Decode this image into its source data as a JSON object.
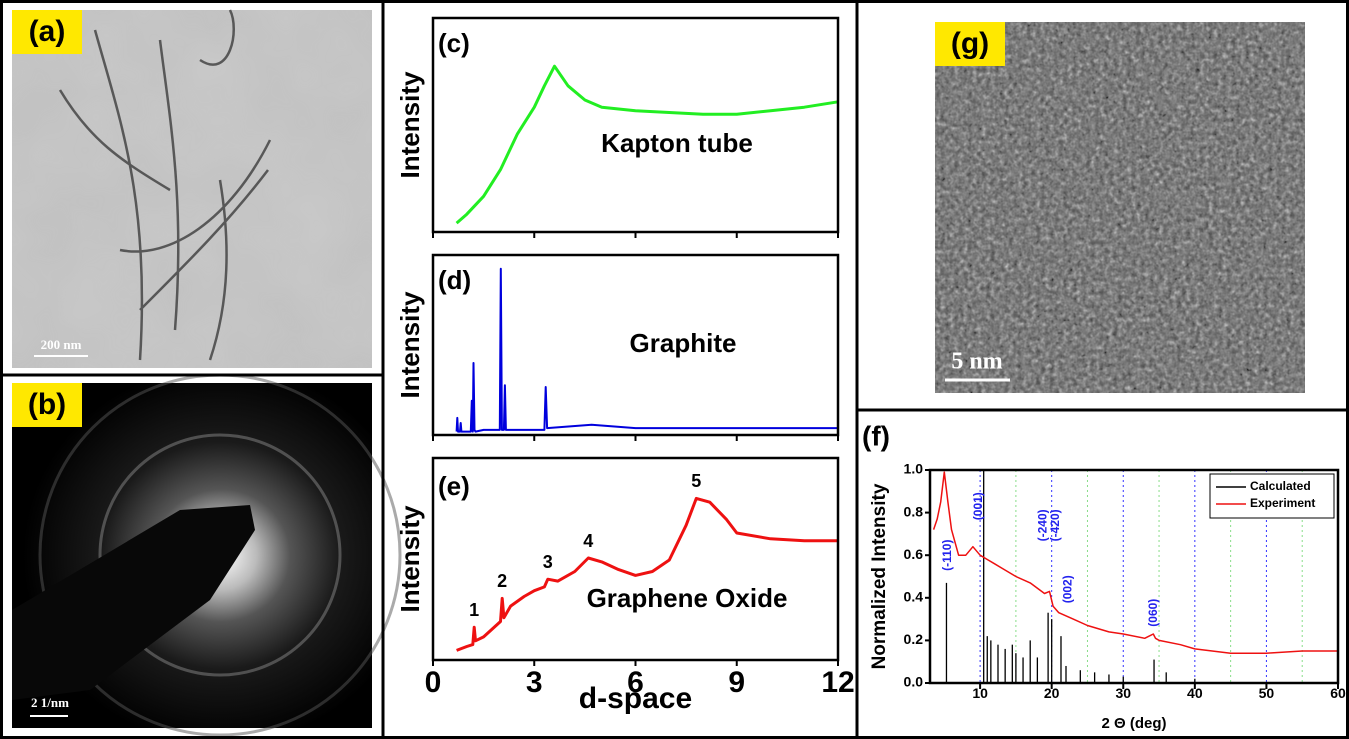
{
  "images": [
    {
      "panel": "(a)",
      "scale_bar": "200 nm"
    },
    {
      "panel": "(b)",
      "scale_bar": "2 1/nm"
    },
    {
      "panel": "(g)",
      "scale_bar": "5 nm"
    }
  ],
  "chart_data": [
    {
      "type": "line",
      "panel": "(c)",
      "ylabel": "Intensity",
      "label": "Kapton tube",
      "color": "#22ee22",
      "xlim": [
        0,
        12
      ],
      "xticks": [
        0,
        3,
        6,
        9,
        12
      ],
      "xticklabels": false,
      "ylim": [
        0,
        1.2
      ],
      "x": [
        0.7,
        1,
        1.5,
        2,
        2.5,
        3,
        3.3,
        3.6,
        4,
        4.5,
        5,
        6,
        7,
        8,
        9,
        10,
        11,
        12
      ],
      "values": [
        0.05,
        0.1,
        0.2,
        0.35,
        0.55,
        0.7,
        0.82,
        0.93,
        0.82,
        0.74,
        0.7,
        0.68,
        0.67,
        0.66,
        0.66,
        0.68,
        0.7,
        0.73
      ]
    },
    {
      "type": "line",
      "panel": "(d)",
      "ylabel": "Intensity",
      "label": "Graphite",
      "color": "#0000dd",
      "xlim": [
        0,
        12
      ],
      "xticks": [
        0,
        3,
        6,
        9,
        12
      ],
      "xticklabels": false,
      "ylim": [
        0,
        1.05
      ],
      "x": [
        0.7,
        0.72,
        0.74,
        0.8,
        0.82,
        0.84,
        1.12,
        1.15,
        1.18,
        1.2,
        1.23,
        1.26,
        1.5,
        1.98,
        2.01,
        2.04,
        2.1,
        2.13,
        2.16,
        3.3,
        3.34,
        3.38,
        4.7,
        6,
        9,
        12
      ],
      "values": [
        0.02,
        0.1,
        0.02,
        0.02,
        0.07,
        0.02,
        0.02,
        0.2,
        0.02,
        0.42,
        0.03,
        0.02,
        0.03,
        0.03,
        0.97,
        0.03,
        0.03,
        0.29,
        0.03,
        0.03,
        0.28,
        0.04,
        0.06,
        0.04,
        0.04,
        0.04
      ]
    },
    {
      "type": "line",
      "panel": "(e)",
      "ylabel": "Intensity",
      "xlabel": "d-space",
      "label": "Graphene Oxide",
      "color": "#ee1111",
      "xlim": [
        0,
        12
      ],
      "xticks": [
        0,
        3,
        6,
        9,
        12
      ],
      "xticklabels": true,
      "ylim": [
        0,
        1.05
      ],
      "x": [
        0.7,
        1.0,
        1.18,
        1.22,
        1.26,
        1.5,
        2.0,
        2.05,
        2.1,
        2.3,
        2.7,
        3.0,
        3.3,
        3.4,
        3.7,
        4.2,
        4.6,
        5.0,
        5.5,
        6.0,
        6.5,
        7.0,
        7.5,
        7.8,
        8.2,
        8.7,
        9.0,
        10,
        11,
        12
      ],
      "values": [
        0.05,
        0.07,
        0.08,
        0.17,
        0.1,
        0.12,
        0.2,
        0.32,
        0.22,
        0.28,
        0.33,
        0.36,
        0.38,
        0.42,
        0.41,
        0.46,
        0.53,
        0.51,
        0.47,
        0.44,
        0.46,
        0.52,
        0.7,
        0.84,
        0.82,
        0.73,
        0.66,
        0.63,
        0.62,
        0.62
      ],
      "annotations": [
        {
          "text": "1",
          "x": 1.22,
          "y": 0.17
        },
        {
          "text": "2",
          "x": 2.05,
          "y": 0.32
        },
        {
          "text": "3",
          "x": 3.4,
          "y": 0.42
        },
        {
          "text": "4",
          "x": 4.6,
          "y": 0.53
        },
        {
          "text": "5",
          "x": 7.8,
          "y": 0.84
        }
      ]
    },
    {
      "type": "line",
      "panel": "(f)",
      "ylabel": "Normalized Intensity",
      "xlabel": "2 Θ (deg)",
      "xlim": [
        3,
        60
      ],
      "xticks": [
        10,
        20,
        30,
        40,
        50,
        60
      ],
      "xticklabels": true,
      "xminorticks": [
        15,
        25,
        35,
        45,
        55
      ],
      "grid_color": "#3333ff",
      "minor_grid_color": "#88dd88",
      "ylim": [
        0,
        1.0
      ],
      "yticks": [
        {
          "value": 0,
          "label": "0.0"
        },
        {
          "value": 0.2,
          "label": "0.2"
        },
        {
          "value": 0.4,
          "label": "0.4"
        },
        {
          "value": 0.6,
          "label": "0.6"
        },
        {
          "value": 0.8,
          "label": "0.8"
        },
        {
          "value": 1.0,
          "label": "1.0"
        }
      ],
      "legend": "upper right",
      "series": [
        {
          "name": "Calculated",
          "color": "#000000",
          "style": "stem",
          "x": [
            5.3,
            10.5,
            11,
            11.5,
            12.5,
            13.5,
            14.5,
            15,
            16,
            17,
            18,
            19.5,
            20,
            21.3,
            22,
            24,
            26,
            28,
            30,
            34.3,
            36,
            40
          ],
          "values": [
            0.47,
            1.0,
            0.22,
            0.2,
            0.18,
            0.16,
            0.18,
            0.14,
            0.12,
            0.2,
            0.12,
            0.33,
            0.3,
            0.22,
            0.08,
            0.06,
            0.05,
            0.04,
            0.03,
            0.11,
            0.05,
            0.02
          ]
        },
        {
          "name": "Experiment",
          "color": "#ee1111",
          "style": "line",
          "x": [
            3.5,
            4,
            4.5,
            5,
            5.5,
            6,
            7,
            8,
            9,
            10,
            11,
            12,
            13,
            15,
            17,
            19,
            19.7,
            20.2,
            21,
            23,
            25,
            28,
            30,
            33,
            34.2,
            34.5,
            35,
            38,
            40,
            45,
            50,
            55,
            60
          ],
          "values": [
            0.72,
            0.77,
            0.85,
            0.99,
            0.85,
            0.72,
            0.6,
            0.6,
            0.64,
            0.6,
            0.58,
            0.56,
            0.54,
            0.5,
            0.47,
            0.42,
            0.43,
            0.36,
            0.33,
            0.3,
            0.27,
            0.24,
            0.23,
            0.21,
            0.23,
            0.21,
            0.2,
            0.18,
            0.16,
            0.14,
            0.14,
            0.15,
            0.15
          ]
        }
      ],
      "annotations": [
        {
          "text": "(-110)",
          "x": 5.5,
          "y": 0.6
        },
        {
          "text": "(001)",
          "x": 9.8,
          "y": 0.83
        },
        {
          "text": "(-240)",
          "x": 18.8,
          "y": 0.74
        },
        {
          "text": "(-420)",
          "x": 20.6,
          "y": 0.74
        },
        {
          "text": "(002)",
          "x": 22.3,
          "y": 0.44
        },
        {
          "text": "(060)",
          "x": 34.3,
          "y": 0.33
        }
      ]
    }
  ]
}
